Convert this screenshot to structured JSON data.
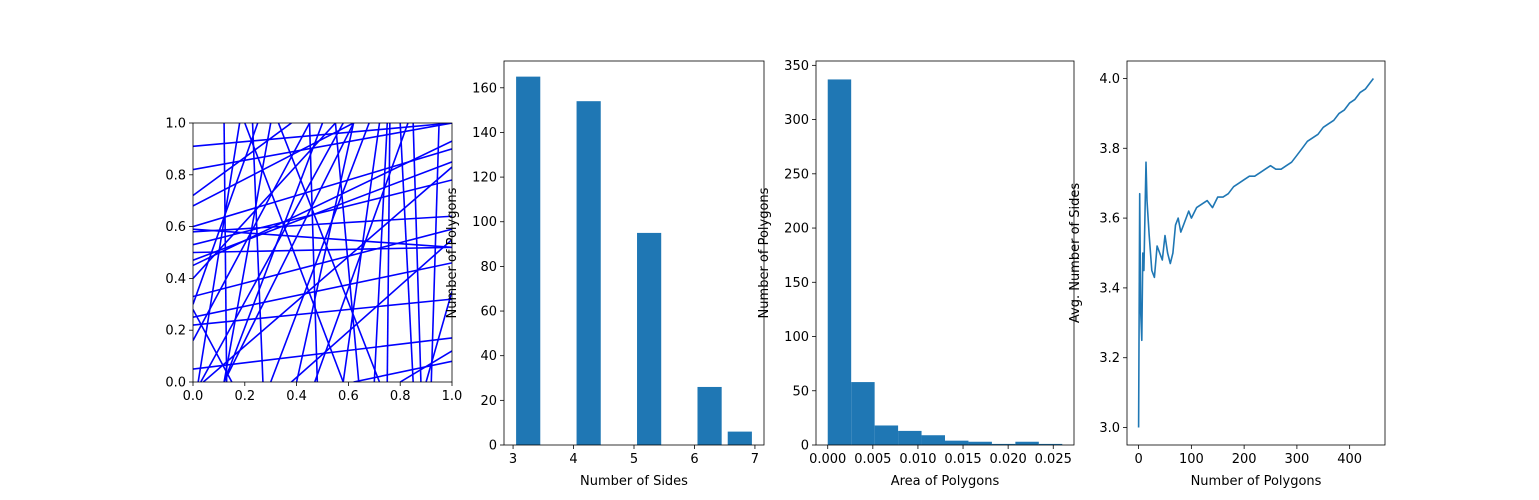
{
  "chart_data": [
    {
      "type": "line",
      "xlim": [
        0,
        1
      ],
      "ylim": [
        0,
        1
      ],
      "xticks": [
        "0.0",
        "0.2",
        "0.4",
        "0.6",
        "0.8",
        "1.0"
      ],
      "yticks": [
        "0.0",
        "0.2",
        "0.4",
        "0.6",
        "0.8",
        "1.0"
      ],
      "xlabel": "",
      "ylabel": "",
      "color": "#0000ff",
      "segments": [
        [
          [
            0.0,
            0.91
          ],
          [
            1.0,
            1.0
          ]
        ],
        [
          [
            0.0,
            0.82
          ],
          [
            1.0,
            1.0
          ]
        ],
        [
          [
            0.0,
            0.68
          ],
          [
            0.62,
            1.0
          ]
        ],
        [
          [
            0.0,
            0.72
          ],
          [
            0.38,
            1.0
          ]
        ],
        [
          [
            0.0,
            0.6
          ],
          [
            1.0,
            0.9
          ]
        ],
        [
          [
            0.0,
            0.59
          ],
          [
            1.0,
            0.52
          ]
        ],
        [
          [
            0.0,
            0.58
          ],
          [
            1.0,
            0.64
          ]
        ],
        [
          [
            0.0,
            0.53
          ],
          [
            1.0,
            0.78
          ]
        ],
        [
          [
            0.0,
            0.47
          ],
          [
            1.0,
            0.85
          ]
        ],
        [
          [
            0.0,
            0.45
          ],
          [
            1.0,
            0.93
          ]
        ],
        [
          [
            0.0,
            0.5
          ],
          [
            1.0,
            0.52
          ]
        ],
        [
          [
            0.0,
            0.33
          ],
          [
            1.0,
            0.59
          ]
        ],
        [
          [
            0.0,
            0.3
          ],
          [
            0.25,
            1.0
          ]
        ],
        [
          [
            0.0,
            0.25
          ],
          [
            1.0,
            0.46
          ]
        ],
        [
          [
            0.0,
            0.22
          ],
          [
            1.0,
            0.32
          ]
        ],
        [
          [
            0.0,
            0.16
          ],
          [
            0.45,
            1.0
          ]
        ],
        [
          [
            0.0,
            0.05
          ],
          [
            1.0,
            0.17
          ]
        ],
        [
          [
            0.03,
            0.0
          ],
          [
            0.58,
            1.0
          ]
        ],
        [
          [
            0.04,
            0.0
          ],
          [
            1.0,
            0.83
          ]
        ],
        [
          [
            0.12,
            1.0
          ],
          [
            0.13,
            0.0
          ]
        ],
        [
          [
            0.12,
            0.0
          ],
          [
            0.62,
            1.0
          ]
        ],
        [
          [
            0.2,
            1.0
          ],
          [
            0.58,
            0.0
          ]
        ],
        [
          [
            0.23,
            1.0
          ],
          [
            0.27,
            0.0
          ]
        ],
        [
          [
            0.3,
            1.0
          ],
          [
            0.12,
            0.0
          ]
        ],
        [
          [
            0.33,
            1.0
          ],
          [
            0.72,
            0.0
          ]
        ],
        [
          [
            0.38,
            0.0
          ],
          [
            1.0,
            0.55
          ]
        ],
        [
          [
            0.45,
            1.0
          ],
          [
            0.48,
            0.0
          ]
        ],
        [
          [
            0.5,
            1.0
          ],
          [
            0.12,
            0.0
          ]
        ],
        [
          [
            0.47,
            0.0
          ],
          [
            0.83,
            1.0
          ]
        ],
        [
          [
            0.55,
            1.0
          ],
          [
            0.64,
            0.0
          ]
        ],
        [
          [
            0.62,
            1.0
          ],
          [
            0.4,
            0.0
          ]
        ],
        [
          [
            0.68,
            1.0
          ],
          [
            0.3,
            0.0
          ]
        ],
        [
          [
            0.7,
            0.0
          ],
          [
            0.75,
            1.0
          ]
        ],
        [
          [
            0.72,
            1.0
          ],
          [
            0.58,
            0.0
          ]
        ],
        [
          [
            0.75,
            0.0
          ],
          [
            0.76,
            1.0
          ]
        ],
        [
          [
            0.8,
            1.0
          ],
          [
            0.85,
            0.0
          ]
        ],
        [
          [
            0.85,
            1.0
          ],
          [
            0.88,
            0.0
          ]
        ],
        [
          [
            0.9,
            0.0
          ],
          [
            1.0,
            0.35
          ]
        ],
        [
          [
            0.62,
            0.0
          ],
          [
            1.0,
            0.08
          ]
        ],
        [
          [
            0.8,
            0.0
          ],
          [
            1.0,
            0.12
          ]
        ],
        [
          [
            0.02,
            0.0
          ],
          [
            0.18,
            1.0
          ]
        ],
        [
          [
            0.95,
            1.0
          ],
          [
            0.92,
            0.0
          ]
        ],
        [
          [
            0.0,
            0.4
          ],
          [
            0.55,
            1.0
          ]
        ],
        [
          [
            0.15,
            0.0
          ],
          [
            0.0,
            0.28
          ]
        ]
      ]
    },
    {
      "type": "bar",
      "x": [
        3.25,
        4.25,
        5.25,
        6.25,
        6.75
      ],
      "values": [
        165,
        154,
        95,
        26,
        6
      ],
      "bar_width": 0.4,
      "xlim": [
        2.85,
        7.15
      ],
      "ylim": [
        0,
        172
      ],
      "xticks": [
        "3",
        "4",
        "5",
        "6",
        "7"
      ],
      "yticks": [
        "0",
        "20",
        "40",
        "60",
        "80",
        "100",
        "120",
        "140",
        "160"
      ],
      "xlabel": "Number of Sides",
      "ylabel": "Number of Polygons",
      "color": "#1f77b4"
    },
    {
      "type": "bar",
      "bin_edges": [
        0.0,
        0.0026,
        0.0052,
        0.0078,
        0.0104,
        0.013,
        0.0156,
        0.0182,
        0.0208,
        0.0234,
        0.026
      ],
      "values": [
        337,
        58,
        18,
        13,
        9,
        4,
        3,
        1,
        3,
        1
      ],
      "xlim": [
        -0.0013,
        0.0273
      ],
      "ylim": [
        0,
        354
      ],
      "xticks": [
        "0.000",
        "0.005",
        "0.010",
        "0.015",
        "0.020",
        "0.025"
      ],
      "yticks": [
        "0",
        "50",
        "100",
        "150",
        "200",
        "250",
        "300",
        "350"
      ],
      "xlabel": "Area of Polygons",
      "ylabel": "Number of Polygons",
      "color": "#1f77b4"
    },
    {
      "type": "line",
      "x": [
        0,
        2,
        4,
        6,
        8,
        10,
        12,
        14,
        16,
        20,
        25,
        30,
        35,
        40,
        45,
        50,
        55,
        60,
        65,
        70,
        75,
        80,
        85,
        90,
        95,
        100,
        110,
        120,
        130,
        140,
        150,
        160,
        170,
        180,
        190,
        200,
        210,
        220,
        230,
        240,
        250,
        260,
        270,
        280,
        290,
        300,
        310,
        320,
        330,
        340,
        350,
        360,
        370,
        380,
        390,
        400,
        410,
        420,
        430,
        440,
        445
      ],
      "y": [
        3.0,
        3.67,
        3.33,
        3.25,
        3.5,
        3.45,
        3.6,
        3.76,
        3.65,
        3.55,
        3.45,
        3.43,
        3.52,
        3.5,
        3.48,
        3.55,
        3.5,
        3.47,
        3.5,
        3.58,
        3.6,
        3.56,
        3.58,
        3.6,
        3.62,
        3.6,
        3.63,
        3.64,
        3.65,
        3.63,
        3.66,
        3.66,
        3.67,
        3.69,
        3.7,
        3.71,
        3.72,
        3.72,
        3.73,
        3.74,
        3.75,
        3.74,
        3.74,
        3.75,
        3.76,
        3.78,
        3.8,
        3.82,
        3.83,
        3.84,
        3.86,
        3.87,
        3.88,
        3.9,
        3.91,
        3.93,
        3.94,
        3.96,
        3.97,
        3.99,
        4.0
      ],
      "xlim": [
        -22,
        467
      ],
      "ylim": [
        2.95,
        4.05
      ],
      "xticks": [
        "0",
        "100",
        "200",
        "300",
        "400"
      ],
      "yticks": [
        "3.0",
        "3.2",
        "3.4",
        "3.6",
        "3.8",
        "4.0"
      ],
      "xlabel": "Number of Polygons",
      "ylabel": "Avg. Number of Sides",
      "color": "#1f77b4"
    }
  ]
}
